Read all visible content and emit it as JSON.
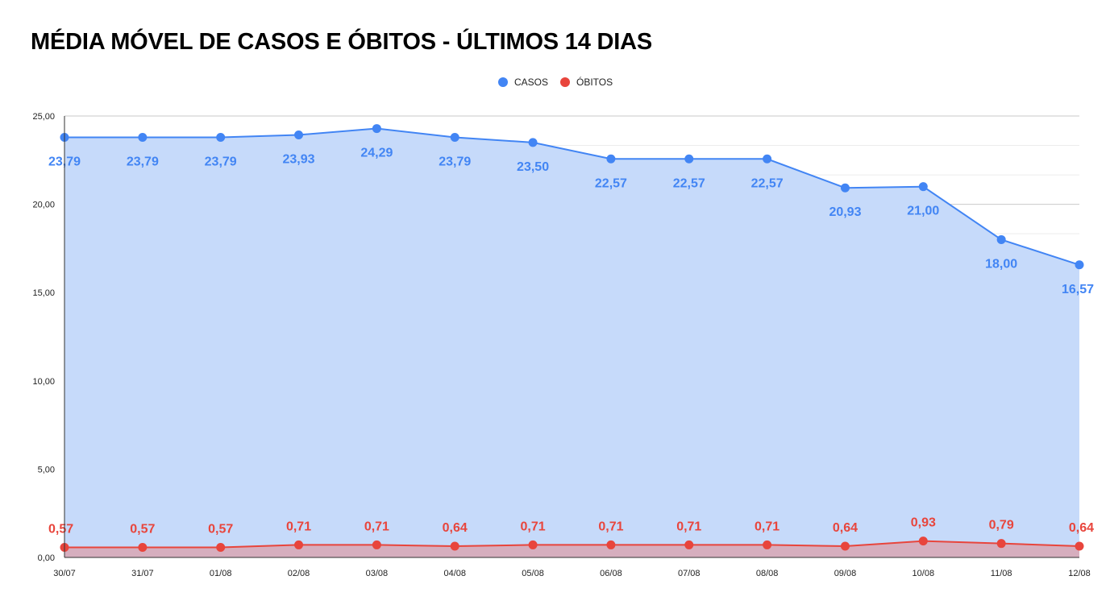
{
  "chart_data": {
    "type": "area",
    "title": "MÉDIA MÓVEL DE CASOS E ÓBITOS - ÚLTIMOS 14 DIAS",
    "legend_position": "top",
    "grid": true,
    "x": [
      "30/07",
      "31/07",
      "01/08",
      "02/08",
      "03/08",
      "04/08",
      "05/08",
      "06/08",
      "07/08",
      "08/08",
      "09/08",
      "10/08",
      "11/08",
      "12/08"
    ],
    "ylim": [
      0,
      25
    ],
    "yticks": [
      "0,00",
      "5,00",
      "10,00",
      "15,00",
      "20,00",
      "25,00"
    ],
    "ytick_values": [
      0,
      5,
      10,
      15,
      20,
      25
    ],
    "series": [
      {
        "name": "CASOS",
        "color": "#4285f4",
        "fill": "#c6dafa",
        "values": [
          23.79,
          23.79,
          23.79,
          23.93,
          24.29,
          23.79,
          23.5,
          22.57,
          22.57,
          22.57,
          20.93,
          21.0,
          18.0,
          16.57
        ],
        "labels": [
          "23,79",
          "23,79",
          "23,79",
          "23,93",
          "24,29",
          "23,79",
          "23,50",
          "22,57",
          "22,57",
          "22,57",
          "20,93",
          "21,00",
          "18,00",
          "16,57"
        ]
      },
      {
        "name": "ÓBITOS",
        "color": "#e8453c",
        "fill": "#d8a6b3",
        "values": [
          0.57,
          0.57,
          0.57,
          0.71,
          0.71,
          0.64,
          0.71,
          0.71,
          0.71,
          0.71,
          0.64,
          0.93,
          0.79,
          0.64
        ],
        "labels": [
          "0,57",
          "0,57",
          "0,57",
          "0,71",
          "0,71",
          "0,64",
          "0,71",
          "0,71",
          "0,71",
          "0,71",
          "0,64",
          "0,93",
          "0,79",
          "0,64"
        ]
      }
    ]
  }
}
